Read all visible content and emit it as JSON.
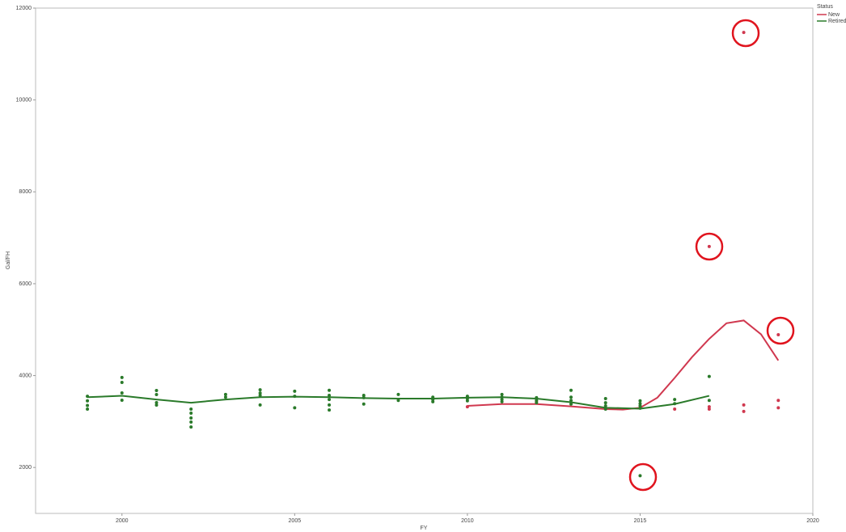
{
  "chart_data": {
    "type": "scatter",
    "x_label": "FY",
    "y_label": "Gal/FH",
    "xlim": [
      1997.5,
      2020
    ],
    "xticks": [
      2000,
      2005,
      2010,
      2015,
      2020
    ],
    "ylim": [
      1000,
      12000
    ],
    "yticks": [
      2000,
      4000,
      6000,
      8000,
      10000,
      12000
    ],
    "legend_title": "Status",
    "legend_position": "right",
    "series": [
      {
        "name": "New",
        "color": "#d0384f",
        "x": [
          2010,
          2012,
          2014,
          2016,
          2017,
          2017,
          2017,
          2018,
          2018,
          2018,
          2019,
          2019,
          2019
        ],
        "values": [
          3320,
          3440,
          3290,
          3270,
          6810,
          3320,
          3270,
          11470,
          3360,
          3220,
          4890,
          3460,
          3300
        ],
        "smooth_x": [
          2010,
          2011,
          2012,
          2013,
          2014,
          2014.5,
          2015,
          2015.5,
          2016,
          2016.5,
          2017,
          2017.5,
          2018,
          2018.5,
          2019
        ],
        "smooth_values": [
          3340,
          3380,
          3380,
          3330,
          3270,
          3260,
          3300,
          3520,
          3950,
          4400,
          4800,
          5140,
          5200,
          4900,
          4330
        ]
      },
      {
        "name": "Retired",
        "color": "#2a7a2a",
        "x": [
          1999,
          1999,
          1999,
          1999,
          2000,
          2000,
          2000,
          2000,
          2001,
          2001,
          2001,
          2001,
          2002,
          2002,
          2002,
          2002,
          2002,
          2003,
          2003,
          2004,
          2004,
          2004,
          2004,
          2005,
          2005,
          2005,
          2006,
          2006,
          2006,
          2006,
          2006,
          2007,
          2007,
          2007,
          2008,
          2008,
          2009,
          2009,
          2009,
          2010,
          2010,
          2010,
          2011,
          2011,
          2011,
          2011,
          2012,
          2012,
          2012,
          2013,
          2013,
          2013,
          2013,
          2014,
          2014,
          2014,
          2014,
          2015,
          2015,
          2015,
          2015,
          2015,
          2016,
          2016,
          2017,
          2017
        ],
        "values": [
          3550,
          3450,
          3350,
          3270,
          3958,
          3852,
          3623,
          3464,
          3676,
          3587,
          3411,
          3358,
          3270,
          3182,
          3076,
          2988,
          2882,
          3590,
          3530,
          3690,
          3620,
          3570,
          3360,
          3660,
          3550,
          3300,
          3680,
          3570,
          3480,
          3360,
          3250,
          3570,
          3520,
          3380,
          3590,
          3460,
          3530,
          3480,
          3430,
          3550,
          3500,
          3450,
          3590,
          3530,
          3480,
          3430,
          3520,
          3460,
          3410,
          3680,
          3530,
          3460,
          3380,
          3500,
          3410,
          3340,
          3270,
          3450,
          3390,
          3340,
          3290,
          1820,
          3480,
          3390,
          3980,
          3460
        ],
        "smooth_x": [
          1999,
          2000,
          2001,
          2002,
          2003,
          2004,
          2005,
          2006,
          2007,
          2008,
          2009,
          2010,
          2011,
          2012,
          2013,
          2014,
          2015,
          2016,
          2017
        ],
        "smooth_values": [
          3530,
          3560,
          3480,
          3410,
          3480,
          3530,
          3540,
          3530,
          3510,
          3500,
          3500,
          3520,
          3530,
          3500,
          3420,
          3300,
          3280,
          3380,
          3560
        ]
      }
    ]
  }
}
